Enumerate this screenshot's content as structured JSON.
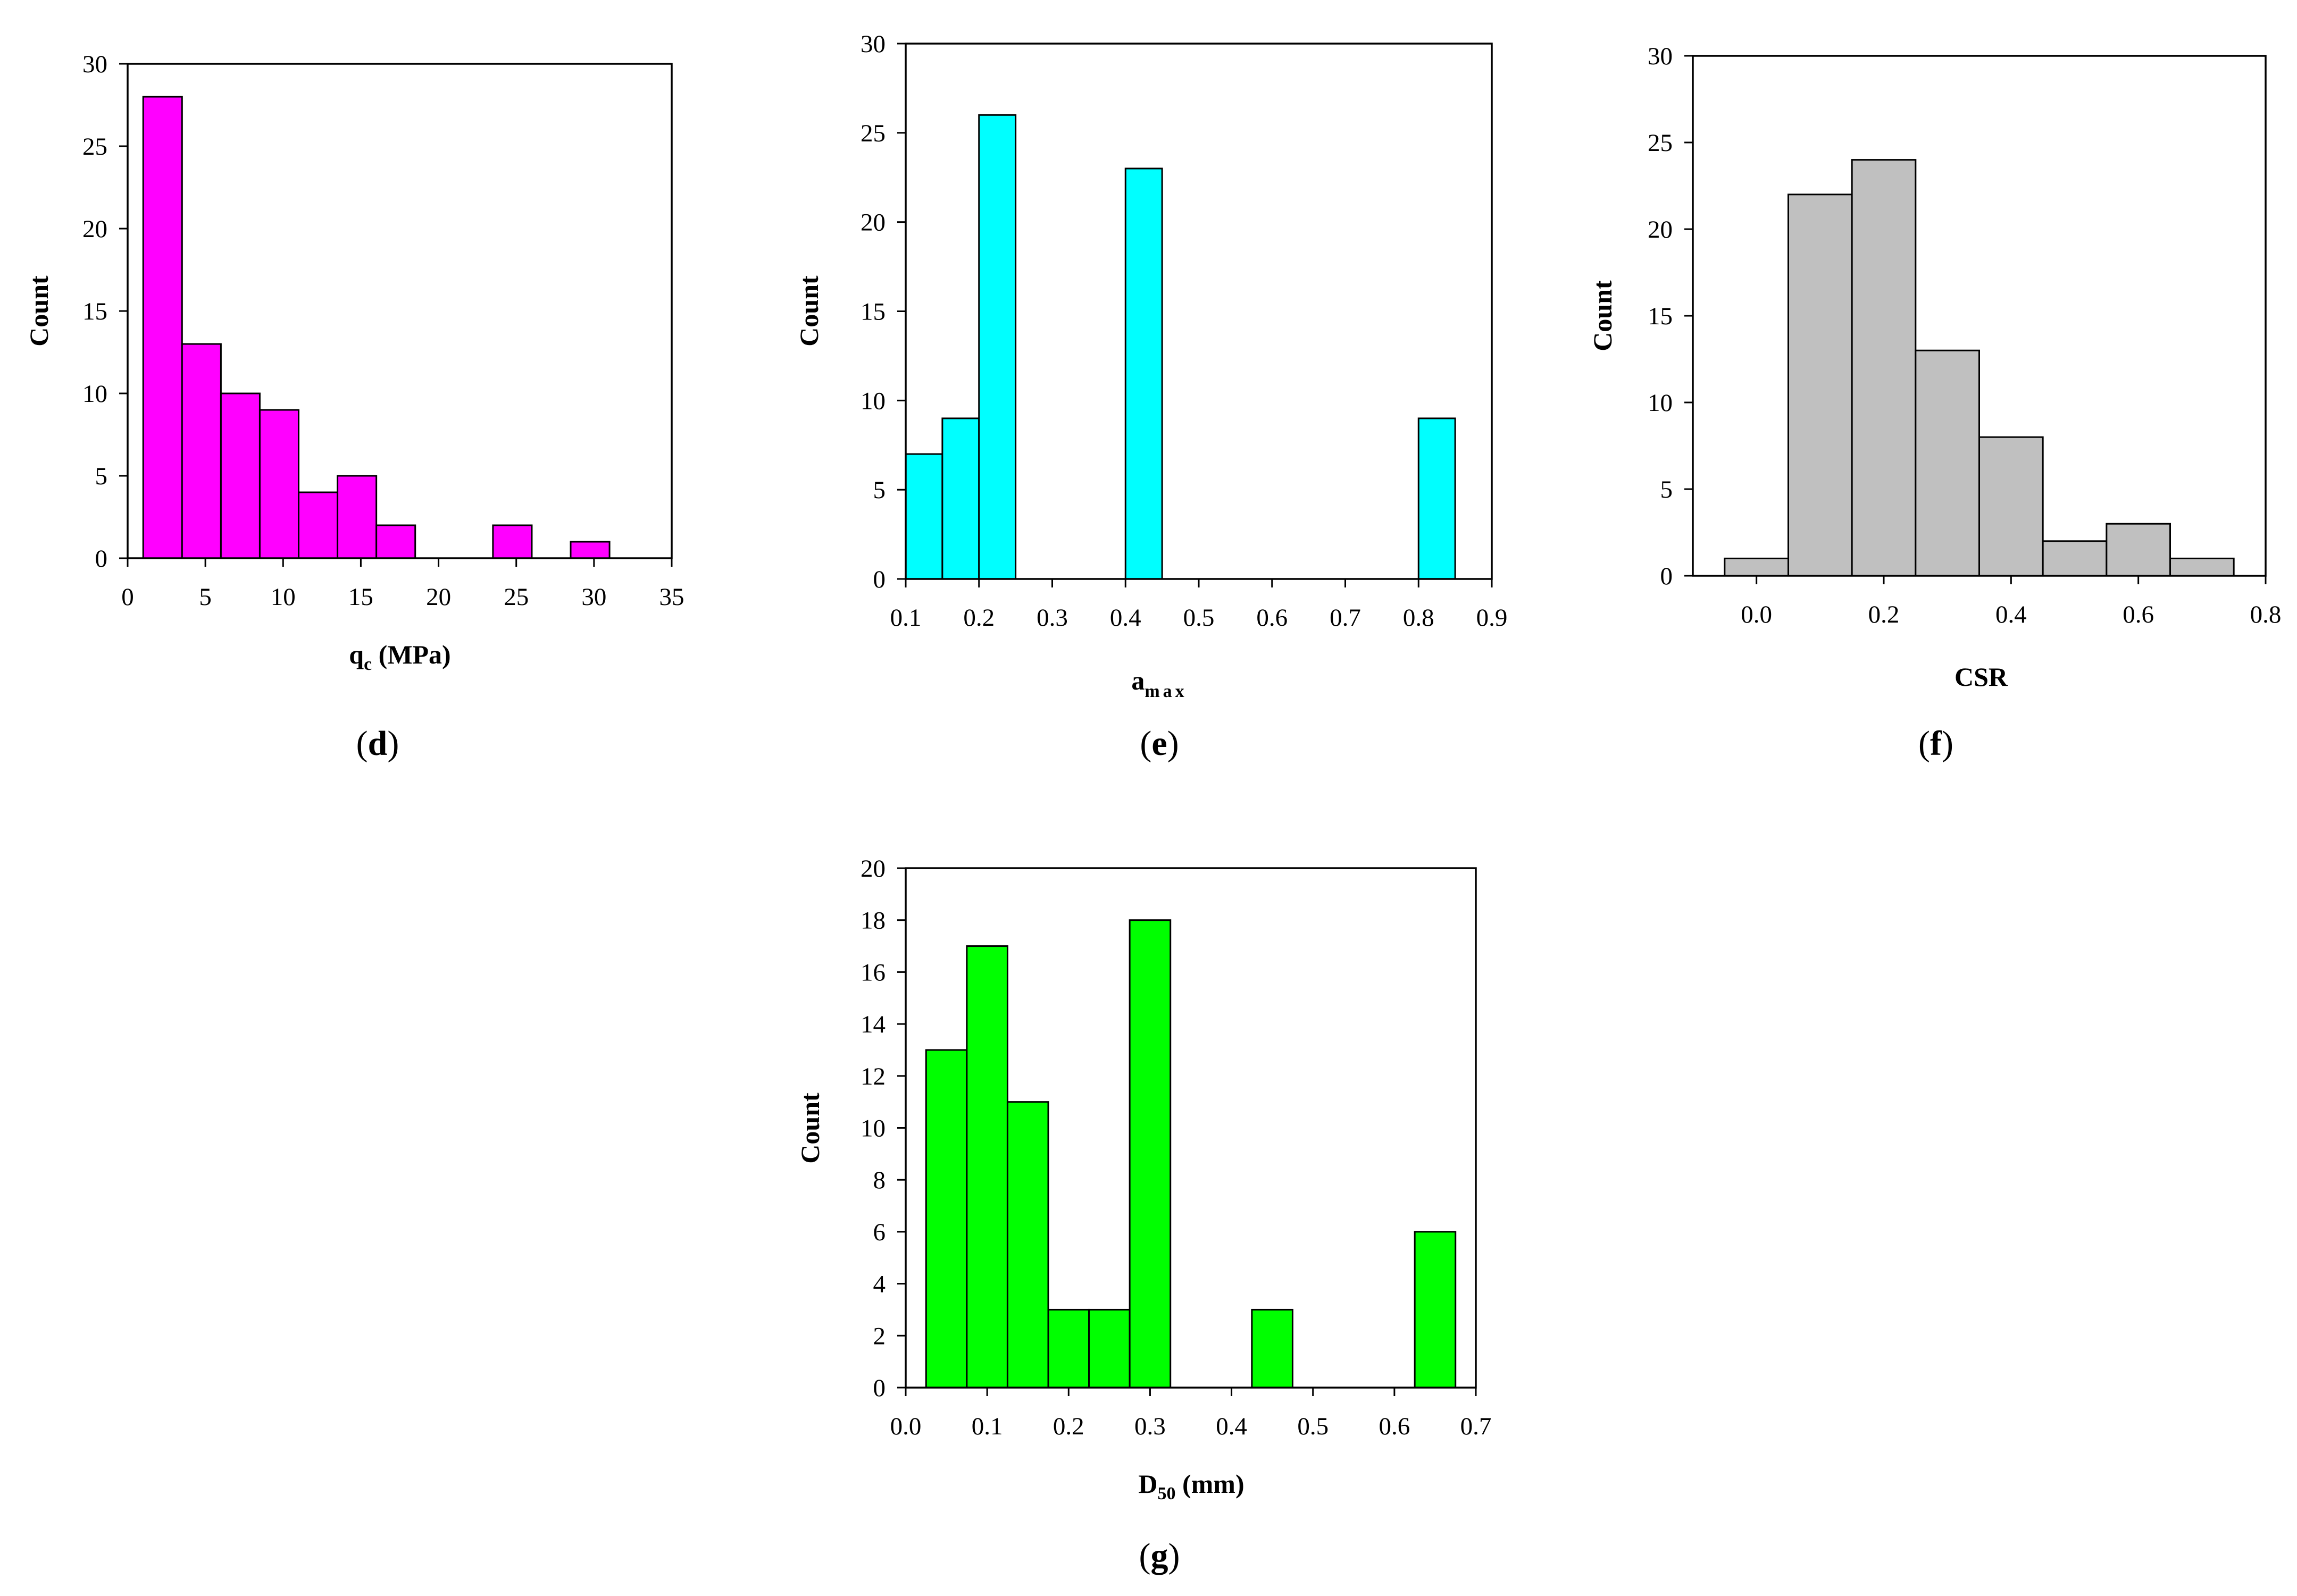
{
  "figure": {
    "panels": [
      {
        "id": "d",
        "caption": "(d)",
        "letter": "d"
      },
      {
        "id": "e",
        "caption": "(e)",
        "letter": "e"
      },
      {
        "id": "f",
        "caption": "(f)",
        "letter": "f"
      },
      {
        "id": "g",
        "caption": "(g)",
        "letter": "g"
      }
    ]
  },
  "chart_data": [
    {
      "id": "d",
      "type": "bar",
      "title": "",
      "xlabel": "q",
      "xlabel_sub": "c",
      "xlabel_suffix": " (MPa)",
      "ylabel": "Count",
      "xlim": [
        0,
        35
      ],
      "ylim": [
        0,
        30
      ],
      "xticks": [
        "0",
        "5",
        "10",
        "15",
        "20",
        "25",
        "30",
        "35"
      ],
      "xtick_values": [
        0,
        5,
        10,
        15,
        20,
        25,
        30,
        35
      ],
      "yticks": [
        "0",
        "5",
        "10",
        "15",
        "20",
        "25",
        "30"
      ],
      "ytick_values": [
        0,
        5,
        10,
        15,
        20,
        25,
        30
      ],
      "bin_edges": [
        1,
        3.5,
        6,
        8.5,
        11,
        13.5,
        16,
        18.5,
        21,
        23.5,
        26,
        28.5,
        31
      ],
      "counts": [
        28,
        13,
        10,
        9,
        4,
        5,
        2,
        0,
        0,
        2,
        0,
        1
      ],
      "color": "#ff00ff"
    },
    {
      "id": "e",
      "type": "bar",
      "title": "",
      "xlabel": "a",
      "xlabel_sub": "max",
      "xlabel_suffix": "",
      "ylabel": "Count",
      "xlim": [
        0.1,
        0.9
      ],
      "ylim": [
        0,
        30
      ],
      "xticks": [
        "0.1",
        "0.2",
        "0.3",
        "0.4",
        "0.5",
        "0.6",
        "0.7",
        "0.8",
        "0.9"
      ],
      "xtick_values": [
        0.1,
        0.2,
        0.3,
        0.4,
        0.5,
        0.6,
        0.7,
        0.8,
        0.9
      ],
      "yticks": [
        "0",
        "5",
        "10",
        "15",
        "20",
        "25",
        "30"
      ],
      "ytick_values": [
        0,
        5,
        10,
        15,
        20,
        25,
        30
      ],
      "bin_edges": [
        0.1,
        0.15,
        0.2,
        0.25,
        0.3,
        0.35,
        0.4,
        0.45,
        0.5,
        0.55,
        0.6,
        0.65,
        0.7,
        0.75,
        0.8,
        0.85
      ],
      "counts": [
        7,
        9,
        26,
        0,
        0,
        0,
        23,
        0,
        0,
        0,
        0,
        0,
        0,
        0,
        9
      ],
      "color": "#00ffff"
    },
    {
      "id": "f",
      "type": "bar",
      "title": "",
      "xlabel": "CSR",
      "xlabel_sub": "",
      "xlabel_suffix": "",
      "ylabel": "Count",
      "xlim": [
        -0.1,
        0.8
      ],
      "ylim": [
        0,
        30
      ],
      "xticks": [
        "0.0",
        "0.2",
        "0.4",
        "0.6",
        "0.8"
      ],
      "xtick_values": [
        0.0,
        0.2,
        0.4,
        0.6,
        0.8
      ],
      "yticks": [
        "0",
        "5",
        "10",
        "15",
        "20",
        "25",
        "30"
      ],
      "ytick_values": [
        0,
        5,
        10,
        15,
        20,
        25,
        30
      ],
      "bin_edges": [
        -0.05,
        0.05,
        0.15,
        0.25,
        0.35,
        0.45,
        0.55,
        0.65,
        0.75
      ],
      "counts": [
        1,
        22,
        24,
        13,
        8,
        2,
        3,
        1
      ],
      "color": "#c0c0c0"
    },
    {
      "id": "g",
      "type": "bar",
      "title": "",
      "xlabel": "D",
      "xlabel_sub": "50",
      "xlabel_suffix": " (mm)",
      "ylabel": "Count",
      "xlim": [
        0.0,
        0.7
      ],
      "ylim": [
        0,
        20
      ],
      "xticks": [
        "0.0",
        "0.1",
        "0.2",
        "0.3",
        "0.4",
        "0.5",
        "0.6",
        "0.7"
      ],
      "xtick_values": [
        0.0,
        0.1,
        0.2,
        0.3,
        0.4,
        0.5,
        0.6,
        0.7
      ],
      "yticks": [
        "0",
        "2",
        "4",
        "6",
        "8",
        "10",
        "12",
        "14",
        "16",
        "18",
        "20"
      ],
      "ytick_values": [
        0,
        2,
        4,
        6,
        8,
        10,
        12,
        14,
        16,
        18,
        20
      ],
      "bin_edges": [
        0.025,
        0.075,
        0.125,
        0.175,
        0.225,
        0.275,
        0.325,
        0.375,
        0.425,
        0.475,
        0.525,
        0.575,
        0.625,
        0.675
      ],
      "counts": [
        13,
        17,
        11,
        3,
        3,
        18,
        0,
        0,
        3,
        0,
        0,
        0,
        6
      ],
      "color": "#00ff00"
    }
  ]
}
